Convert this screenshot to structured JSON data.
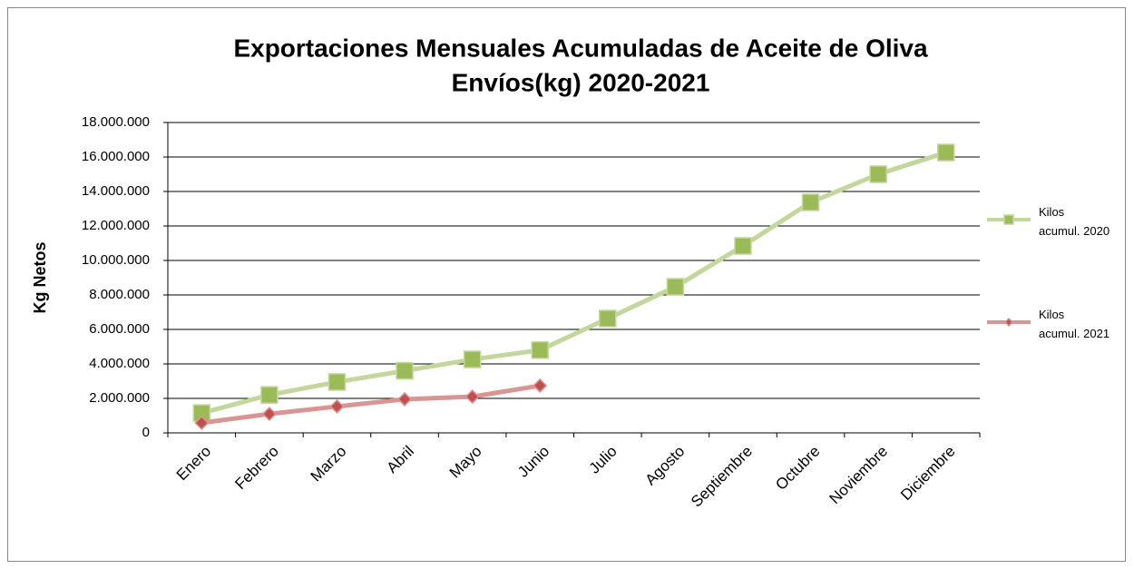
{
  "chart_data": {
    "type": "line",
    "title": [
      "Exportaciones Mensuales Acumuladas de Aceite de Oliva",
      "Envíos(kg)  2020-2021"
    ],
    "y_label": "Kg Netos",
    "categories": [
      "Enero",
      "Febrero",
      "Marzo",
      "Abril",
      "Mayo",
      "Junio",
      "Julio",
      "Agosto",
      "Septiembre",
      "Octubre",
      "Noviembre",
      "Diciembre"
    ],
    "series": [
      {
        "name": "Kilos acumul. 2020",
        "color": "#c3d69b",
        "marker_color": "#9bbb59",
        "marker": "square",
        "values": [
          1150000,
          2200000,
          2950000,
          3600000,
          4260000,
          4800000,
          6630000,
          8470000,
          10840000,
          13370000,
          15000000,
          16260000
        ]
      },
      {
        "name": "Kilos acumul. 2021",
        "color": "#d99594",
        "marker_color": "#c0504d",
        "marker": "diamond",
        "values": [
          580000,
          1100000,
          1530000,
          1950000,
          2100000,
          2740000,
          null,
          null,
          null,
          null,
          null,
          null
        ]
      }
    ],
    "ylim": [
      0,
      18000000
    ],
    "yticks": [
      0,
      {
        "value": 2000000,
        "label": "2.000.000"
      },
      {
        "value": 4000000,
        "label": "4.000.000"
      },
      {
        "value": 6000000,
        "label": "6.000.000"
      },
      {
        "value": 8000000,
        "label": "8.000.000"
      },
      {
        "value": 10000000,
        "label": "10.000.000"
      },
      {
        "value": 12000000,
        "label": "12.000.000"
      },
      {
        "value": 14000000,
        "label": "14.000.000"
      },
      {
        "value": 16000000,
        "label": "16.000.000"
      },
      {
        "value": 18000000,
        "label": "18.000.000"
      }
    ],
    "grid": true,
    "legend": "right"
  }
}
